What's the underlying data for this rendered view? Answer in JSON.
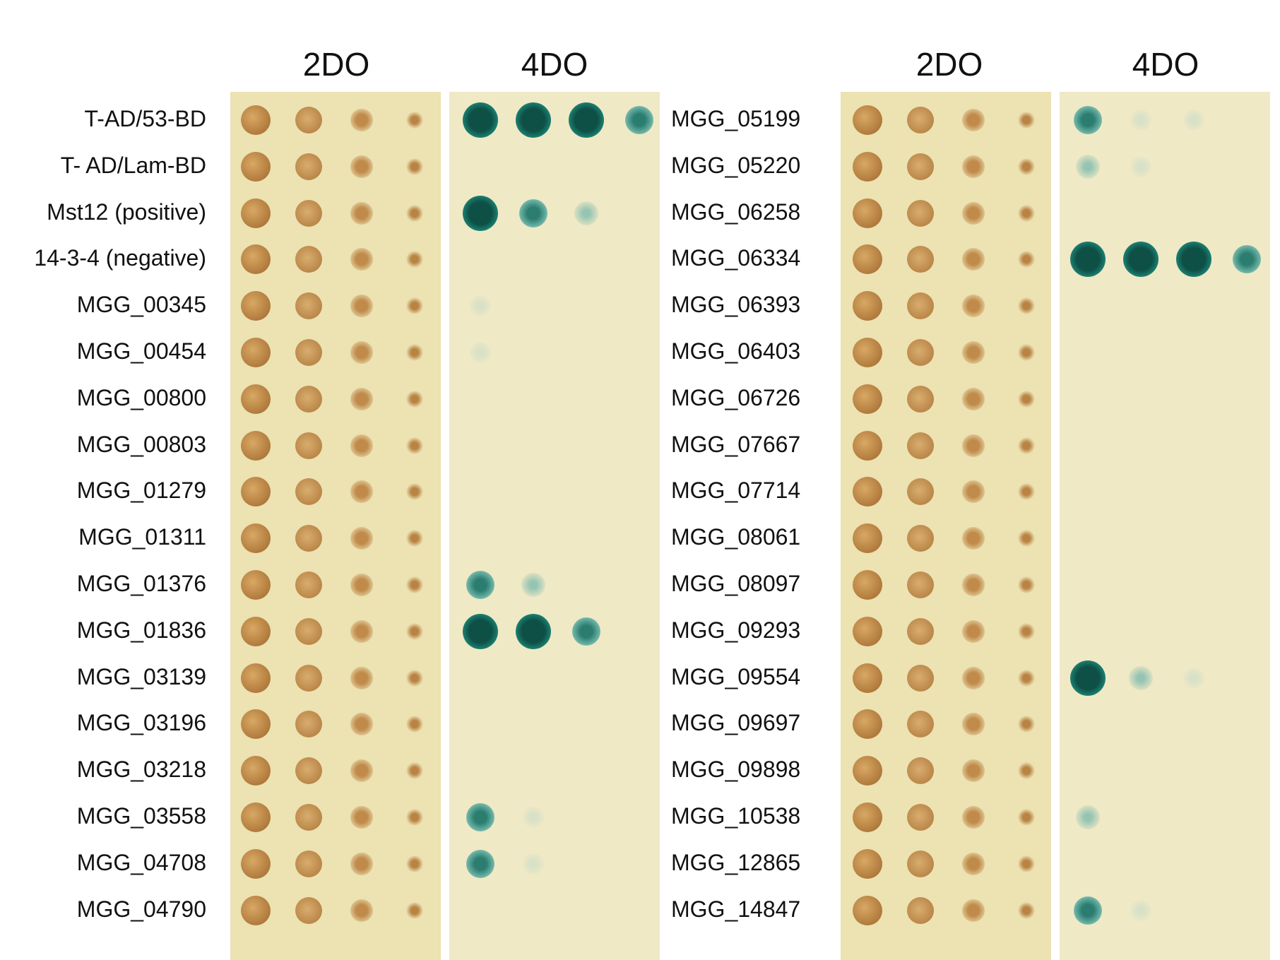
{
  "headers": [
    "2DO",
    "4DO",
    "2DO",
    "4DO"
  ],
  "left_labels": [
    "T-AD/53-BD",
    "T- AD/Lam-BD",
    "Mst12 (positive)",
    "14-3-4 (negative)",
    "MGG_00345",
    "MGG_00454",
    "MGG_00800",
    "MGG_00803",
    "MGG_01279",
    "MGG_01311",
    "MGG_01376",
    "MGG_01836",
    "MGG_03139",
    "MGG_03196",
    "MGG_03218",
    "MGG_03558",
    "MGG_04708",
    "MGG_04790"
  ],
  "right_labels": [
    "MGG_05199",
    "MGG_05220",
    "MGG_06258",
    "MGG_06334",
    "MGG_06393",
    "MGG_06403",
    "MGG_06726",
    "MGG_07667",
    "MGG_07714",
    "MGG_08061",
    "MGG_08097",
    "MGG_09293",
    "MGG_09554",
    "MGG_09697",
    "MGG_09898",
    "MGG_10538",
    "MGG_12865",
    "MGG_14847"
  ],
  "colors": {
    "plate_2do": "#ece2b2",
    "plate_4do": "#f0e9c6",
    "colony_tan": "#b07a3c",
    "colony_blue": "#0e4f46"
  },
  "left_4do_blue_levels": [
    [
      1,
      1,
      1,
      2
    ],
    [
      0,
      0,
      0,
      0
    ],
    [
      1,
      2,
      3,
      0
    ],
    [
      0,
      0,
      0,
      0
    ],
    [
      4,
      0,
      0,
      0
    ],
    [
      4,
      0,
      0,
      0
    ],
    [
      0,
      0,
      0,
      0
    ],
    [
      0,
      0,
      0,
      0
    ],
    [
      0,
      0,
      0,
      0
    ],
    [
      0,
      0,
      0,
      0
    ],
    [
      2,
      3,
      0,
      0
    ],
    [
      1,
      1,
      2,
      0
    ],
    [
      0,
      0,
      0,
      0
    ],
    [
      0,
      0,
      0,
      0
    ],
    [
      0,
      0,
      0,
      0
    ],
    [
      2,
      4,
      0,
      0
    ],
    [
      2,
      4,
      0,
      0
    ],
    [
      0,
      0,
      0,
      0
    ]
  ],
  "right_4do_blue_levels": [
    [
      2,
      4,
      4,
      0
    ],
    [
      3,
      4,
      0,
      0
    ],
    [
      0,
      0,
      0,
      0
    ],
    [
      1,
      1,
      1,
      2
    ],
    [
      0,
      0,
      0,
      0
    ],
    [
      0,
      0,
      0,
      0
    ],
    [
      0,
      0,
      0,
      0
    ],
    [
      0,
      0,
      0,
      0
    ],
    [
      0,
      0,
      0,
      0
    ],
    [
      0,
      0,
      0,
      0
    ],
    [
      0,
      0,
      0,
      0
    ],
    [
      0,
      0,
      0,
      0
    ],
    [
      1,
      3,
      4,
      0
    ],
    [
      0,
      0,
      0,
      0
    ],
    [
      0,
      0,
      0,
      0
    ],
    [
      3,
      0,
      0,
      0
    ],
    [
      0,
      0,
      0,
      0
    ],
    [
      2,
      4,
      0,
      0
    ]
  ]
}
